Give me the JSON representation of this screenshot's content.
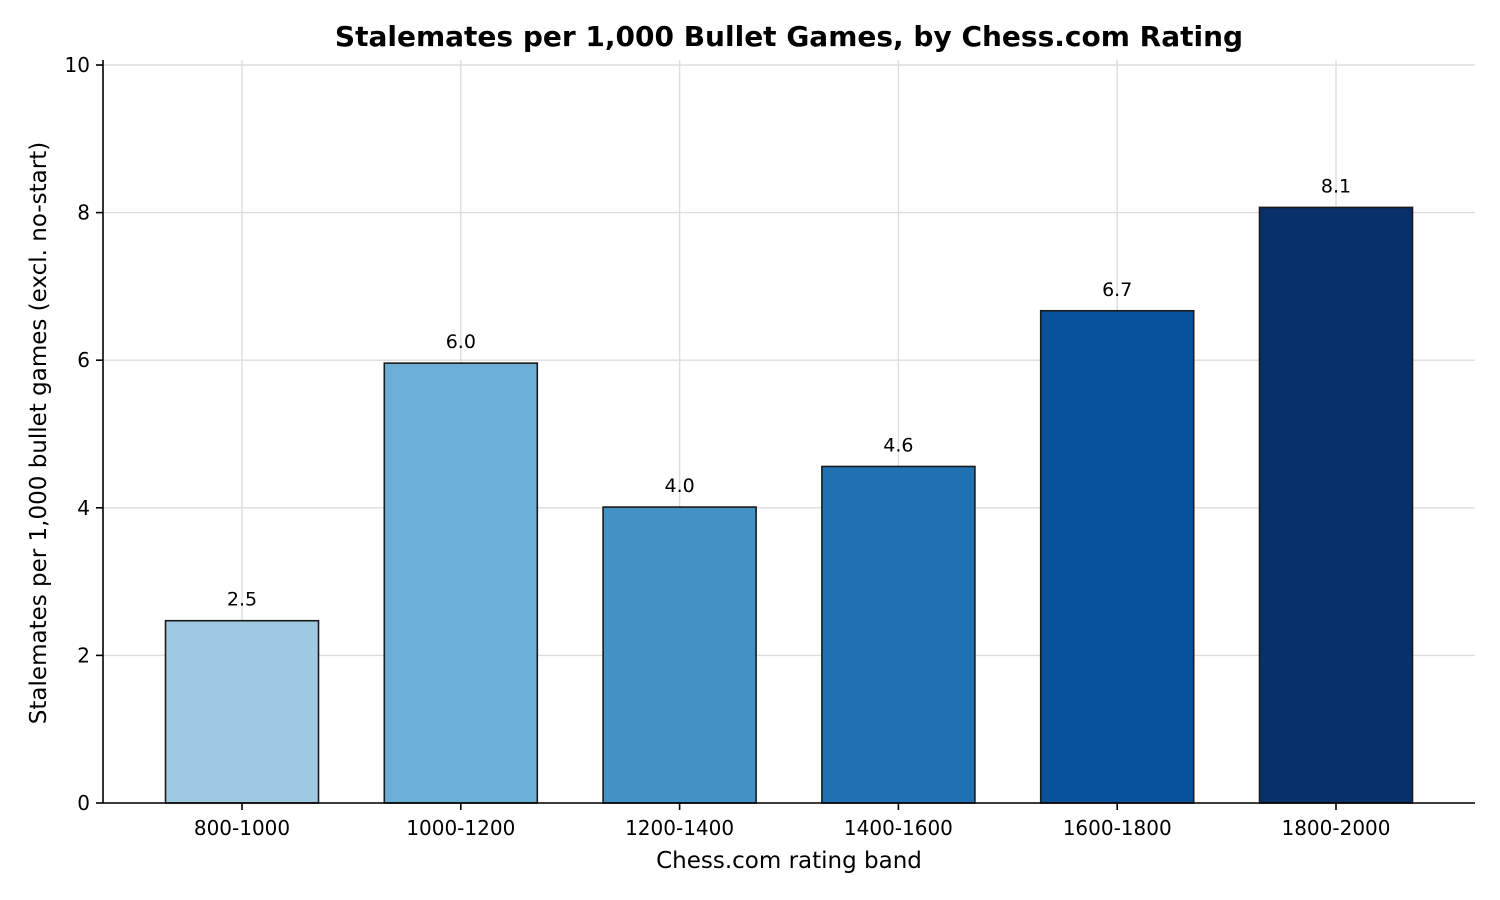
{
  "chart_data": {
    "type": "bar",
    "title": "Stalemates per 1,000 Bullet Games, by Chess.com Rating",
    "xlabel": "Chess.com rating band",
    "ylabel": "Stalemates per 1,000 bullet games (excl. no-start)",
    "categories": [
      "800-1000",
      "1000-1200",
      "1200-1400",
      "1400-1600",
      "1600-1800",
      "1800-2000"
    ],
    "values": [
      2.47,
      5.96,
      4.01,
      4.56,
      6.67,
      8.07
    ],
    "data_labels": [
      "2.5",
      "6.0",
      "4.0",
      "4.6",
      "6.7",
      "8.1"
    ],
    "bar_colors": [
      "#9ecae1",
      "#6baed6",
      "#4292c6",
      "#2171b5",
      "#08519c",
      "#08306b"
    ],
    "ylim": [
      0,
      10
    ],
    "yticks": [
      0,
      2,
      4,
      6,
      8,
      10
    ],
    "ytick_labels": [
      "0",
      "2",
      "4",
      "6",
      "8",
      "10"
    ],
    "grid": true,
    "legend": false
  }
}
